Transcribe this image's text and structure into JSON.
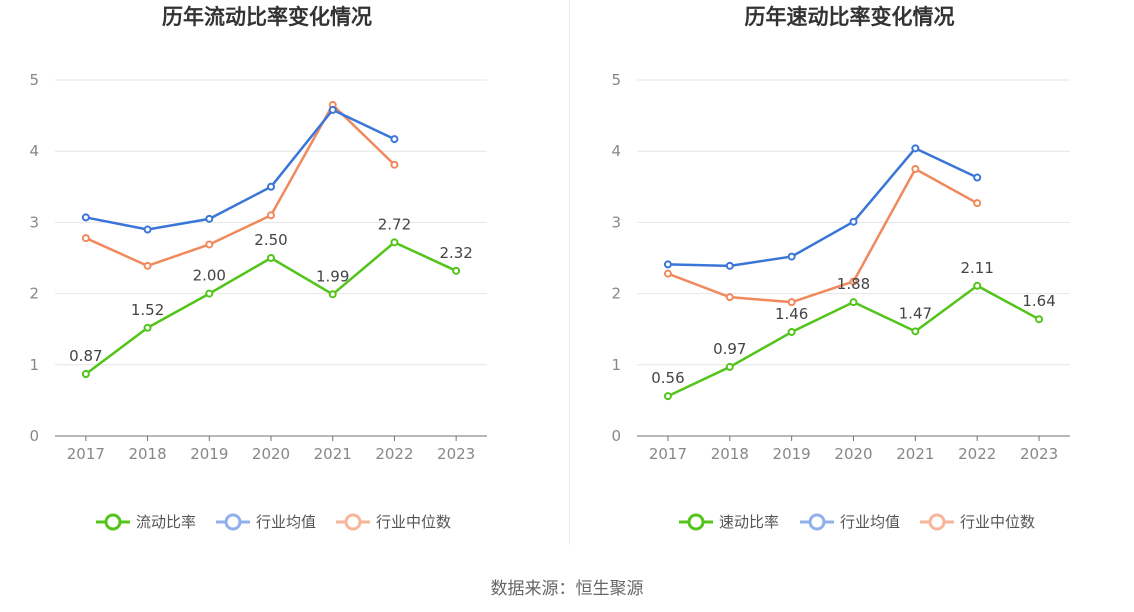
{
  "source": "数据来源：恒生聚源",
  "chart_data": [
    {
      "type": "line",
      "title": "历年流动比率变化情况",
      "categories": [
        "2017",
        "2018",
        "2019",
        "2020",
        "2021",
        "2022",
        "2023"
      ],
      "ylim": [
        0,
        5
      ],
      "yticks": [
        0,
        1,
        2,
        3,
        4,
        5
      ],
      "series": [
        {
          "name": "流动比率",
          "color": "#52c41a",
          "values": [
            0.87,
            1.52,
            2.0,
            2.5,
            1.99,
            2.72,
            2.32
          ],
          "labels": [
            "0.87",
            "1.52",
            "2.00",
            "2.50",
            "1.99",
            "2.72",
            "2.32"
          ]
        },
        {
          "name": "行业均值",
          "color": "#3a75d8",
          "values": [
            3.07,
            2.9,
            3.05,
            3.5,
            4.58,
            4.17,
            null
          ]
        },
        {
          "name": "行业中位数",
          "color": "#f08a5d",
          "values": [
            2.78,
            2.39,
            2.69,
            3.1,
            4.65,
            3.81,
            null
          ]
        }
      ]
    },
    {
      "type": "line",
      "title": "历年速动比率变化情况",
      "categories": [
        "2017",
        "2018",
        "2019",
        "2020",
        "2021",
        "2022",
        "2023"
      ],
      "ylim": [
        0,
        5
      ],
      "yticks": [
        0,
        1,
        2,
        3,
        4,
        5
      ],
      "series": [
        {
          "name": "速动比率",
          "color": "#52c41a",
          "values": [
            0.56,
            0.97,
            1.46,
            1.88,
            1.47,
            2.11,
            1.64
          ],
          "labels": [
            "0.56",
            "0.97",
            "1.46",
            "1.88",
            "1.47",
            "2.11",
            "1.64"
          ]
        },
        {
          "name": "行业均值",
          "color": "#3a75d8",
          "values": [
            2.41,
            2.39,
            2.52,
            3.01,
            4.04,
            3.63,
            null
          ]
        },
        {
          "name": "行业中位数",
          "color": "#f08a5d",
          "values": [
            2.28,
            1.95,
            1.88,
            2.17,
            3.75,
            3.27,
            null
          ]
        }
      ]
    }
  ]
}
